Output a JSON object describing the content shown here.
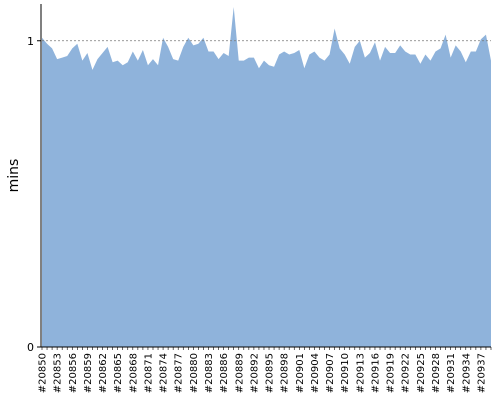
{
  "chart_data": {
    "type": "area",
    "title": "",
    "xlabel": "",
    "ylabel": "mins",
    "ylim": [
      0,
      1.12
    ],
    "yticks": [
      0,
      1
    ],
    "grid": false,
    "reference_line": 1,
    "colors": {
      "fill": "#8fb3db",
      "reference_line": "#777777",
      "axis": "#000000"
    },
    "x_tick_labels": [
      "#20850",
      "#20853",
      "#20856",
      "#20859",
      "#20862",
      "#20865",
      "#20868",
      "#20871",
      "#20874",
      "#20877",
      "#20880",
      "#20883",
      "#20886",
      "#20889",
      "#20892",
      "#20895",
      "#20898",
      "#20901",
      "#20904",
      "#20907",
      "#20910",
      "#20913",
      "#20916",
      "#20919",
      "#20922",
      "#20925",
      "#20928",
      "#20931",
      "#20934",
      "#20937"
    ],
    "x": [
      "#20850",
      "#20851",
      "#20852",
      "#20853",
      "#20854",
      "#20855",
      "#20856",
      "#20857",
      "#20858",
      "#20859",
      "#20860",
      "#20861",
      "#20862",
      "#20863",
      "#20864",
      "#20865",
      "#20866",
      "#20867",
      "#20868",
      "#20869",
      "#20870",
      "#20871",
      "#20872",
      "#20873",
      "#20874",
      "#20875",
      "#20876",
      "#20877",
      "#20878",
      "#20879",
      "#20880",
      "#20881",
      "#20882",
      "#20883",
      "#20884",
      "#20885",
      "#20886",
      "#20887",
      "#20888",
      "#20889",
      "#20890",
      "#20891",
      "#20892",
      "#20893",
      "#20894",
      "#20895",
      "#20896",
      "#20897",
      "#20898",
      "#20899",
      "#20900",
      "#20901",
      "#20902",
      "#20903",
      "#20904",
      "#20905",
      "#20906",
      "#20907",
      "#20908",
      "#20909",
      "#20910",
      "#20911",
      "#20912",
      "#20913",
      "#20914",
      "#20915",
      "#20916",
      "#20917",
      "#20918",
      "#20919",
      "#20920",
      "#20921",
      "#20922",
      "#20923",
      "#20924",
      "#20925",
      "#20926",
      "#20927",
      "#20928",
      "#20929",
      "#20930",
      "#20931",
      "#20932",
      "#20933",
      "#20934",
      "#20935",
      "#20936",
      "#20937",
      "#20938",
      "#20939"
    ],
    "series": [
      {
        "values": [
          1.01,
          0.99,
          0.975,
          0.94,
          0.945,
          0.95,
          0.975,
          0.99,
          0.935,
          0.96,
          0.905,
          0.94,
          0.96,
          0.98,
          0.93,
          0.935,
          0.92,
          0.93,
          0.965,
          0.935,
          0.97,
          0.92,
          0.94,
          0.92,
          1.01,
          0.98,
          0.94,
          0.935,
          0.98,
          1.01,
          0.985,
          0.99,
          1.01,
          0.965,
          0.965,
          0.94,
          0.96,
          0.95,
          1.11,
          0.935,
          0.935,
          0.945,
          0.945,
          0.91,
          0.935,
          0.92,
          0.915,
          0.955,
          0.965,
          0.955,
          0.96,
          0.97,
          0.91,
          0.955,
          0.965,
          0.945,
          0.935,
          0.955,
          1.04,
          0.975,
          0.955,
          0.925,
          0.98,
          1.0,
          0.945,
          0.96,
          0.995,
          0.935,
          0.98,
          0.96,
          0.96,
          0.985,
          0.965,
          0.955,
          0.955,
          0.925,
          0.955,
          0.935,
          0.965,
          0.975,
          1.02,
          0.945,
          0.985,
          0.965,
          0.93,
          0.965,
          0.965,
          1.005,
          1.02,
          0.935
        ]
      }
    ]
  }
}
